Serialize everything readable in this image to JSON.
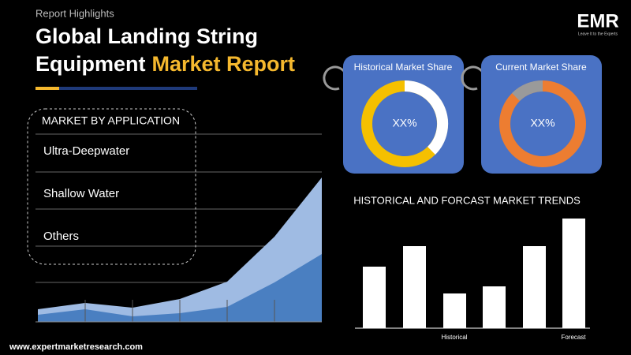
{
  "header": {
    "kicker": "Report Highlights",
    "title_line1": "Global Landing String",
    "title_line2": "Equipment",
    "title_highlight": "Market Report"
  },
  "logo": {
    "text": "EMR",
    "tagline": "Leave It to the Experts"
  },
  "application_panel": {
    "title": "MARKET BY APPLICATION",
    "items": [
      "Ultra-Deepwater",
      "Shallow Water",
      "Others"
    ]
  },
  "donuts": [
    {
      "title": "Historical Market Share",
      "value": "XX%"
    },
    {
      "title": "Current Market Share",
      "value": "XX%"
    }
  ],
  "trends": {
    "title": "HISTORICAL AND FORCAST MARKET TRENDS",
    "labels": [
      "Historical",
      "Forecast"
    ]
  },
  "footer": {
    "url": "www.expertmarketresearch.com"
  }
}
